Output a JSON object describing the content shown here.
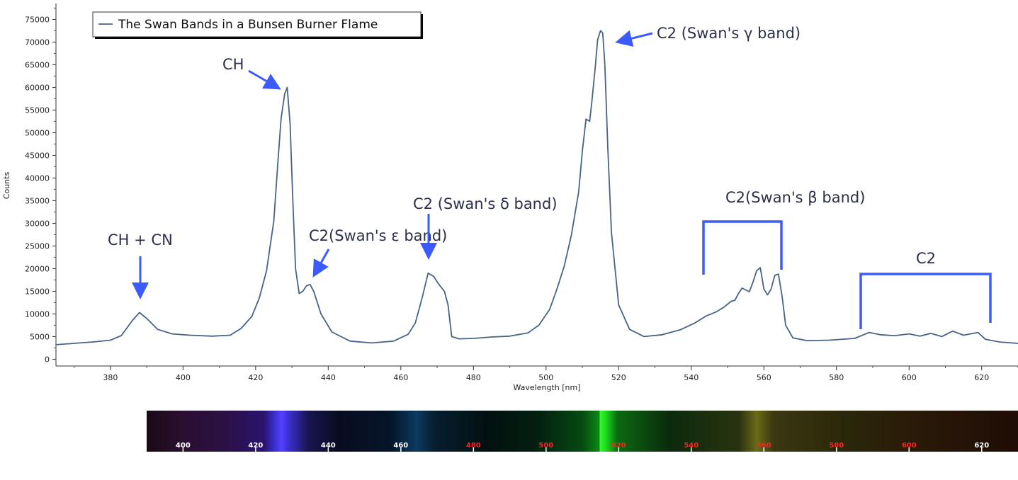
{
  "chart_data": {
    "type": "line",
    "title": "",
    "xlabel": "Wavelength [nm]",
    "ylabel": "Counts",
    "xlim": [
      365,
      630
    ],
    "ylim": [
      -1500,
      78500
    ],
    "x_ticks": [
      380,
      400,
      420,
      440,
      460,
      480,
      500,
      520,
      540,
      560,
      580,
      600,
      620
    ],
    "y_ticks": [
      0,
      5000,
      10000,
      15000,
      20000,
      25000,
      30000,
      35000,
      40000,
      45000,
      50000,
      55000,
      60000,
      65000,
      70000,
      75000
    ],
    "grid": false,
    "legend": {
      "position": "top-left",
      "entries": [
        "The Swan Bands in a Bunsen Burner Flame"
      ]
    },
    "series": [
      {
        "name": "The Swan Bands in a Bunsen Burner Flame",
        "color": "#4a6285",
        "x": [
          365,
          370,
          375,
          380,
          383,
          386,
          388,
          390,
          393,
          397,
          402,
          408,
          413,
          416,
          419,
          421,
          423,
          425,
          426,
          427,
          428,
          428.7,
          429.5,
          430.2,
          431,
          432,
          433,
          434,
          435,
          436,
          438,
          441,
          446,
          452,
          458,
          462,
          464,
          466,
          467.5,
          469,
          470.5,
          472,
          473,
          474,
          476,
          480,
          485,
          490,
          495,
          498,
          501,
          503,
          505,
          507,
          509,
          510,
          511,
          512,
          512.5,
          513.5,
          514.2,
          515,
          515.6,
          516.2,
          517,
          518,
          520,
          523,
          527,
          532,
          537,
          541,
          544,
          547,
          549,
          551,
          552,
          553,
          554,
          555,
          556,
          557,
          558,
          559,
          560,
          561,
          562,
          563,
          564,
          565,
          566,
          568,
          572,
          578,
          585,
          589,
          592,
          596,
          600,
          603,
          606,
          609,
          612,
          615,
          619,
          621,
          625,
          630
        ],
        "y": [
          3200,
          3500,
          3800,
          4200,
          5200,
          8500,
          10300,
          9000,
          6600,
          5600,
          5300,
          5100,
          5300,
          6800,
          9500,
          13500,
          19500,
          30500,
          42000,
          53000,
          58500,
          60000,
          52000,
          36000,
          20000,
          14500,
          15000,
          16200,
          16500,
          15000,
          10000,
          6000,
          4000,
          3600,
          4000,
          5500,
          8000,
          14000,
          19000,
          18300,
          16500,
          15000,
          12000,
          5000,
          4500,
          4600,
          4900,
          5100,
          5800,
          7500,
          11000,
          15500,
          20500,
          27500,
          37000,
          46000,
          53000,
          52500,
          56000,
          64000,
          70500,
          72500,
          72000,
          65000,
          47000,
          28000,
          12000,
          6600,
          5000,
          5400,
          6500,
          8000,
          9500,
          10500,
          11500,
          12800,
          13000,
          14500,
          15700,
          15300,
          14900,
          17000,
          19500,
          20200,
          15500,
          14200,
          15500,
          18500,
          18800,
          14000,
          7500,
          4700,
          4100,
          4200,
          4600,
          5900,
          5400,
          5200,
          5600,
          5100,
          5700,
          5000,
          6200,
          5300,
          5900,
          4400,
          3800,
          3500
        ]
      }
    ],
    "annotations": [
      "CH + CN",
      "CH",
      "C2(Swan's ε band)",
      "C2 (Swan's δ band)",
      "C2 (Swan's γ band)",
      "C2(Swan's β band)",
      "C2"
    ],
    "spectrum_strip_ticks": [
      400,
      420,
      440,
      460,
      480,
      500,
      520,
      540,
      560,
      580,
      600,
      620
    ]
  },
  "colors": {
    "line": "#4a6285",
    "annotation": "#3b5bff",
    "annotation_text": "#2b2f4a",
    "strip_tick_white": "#ffffff",
    "strip_tick_red": "#ff2020"
  }
}
